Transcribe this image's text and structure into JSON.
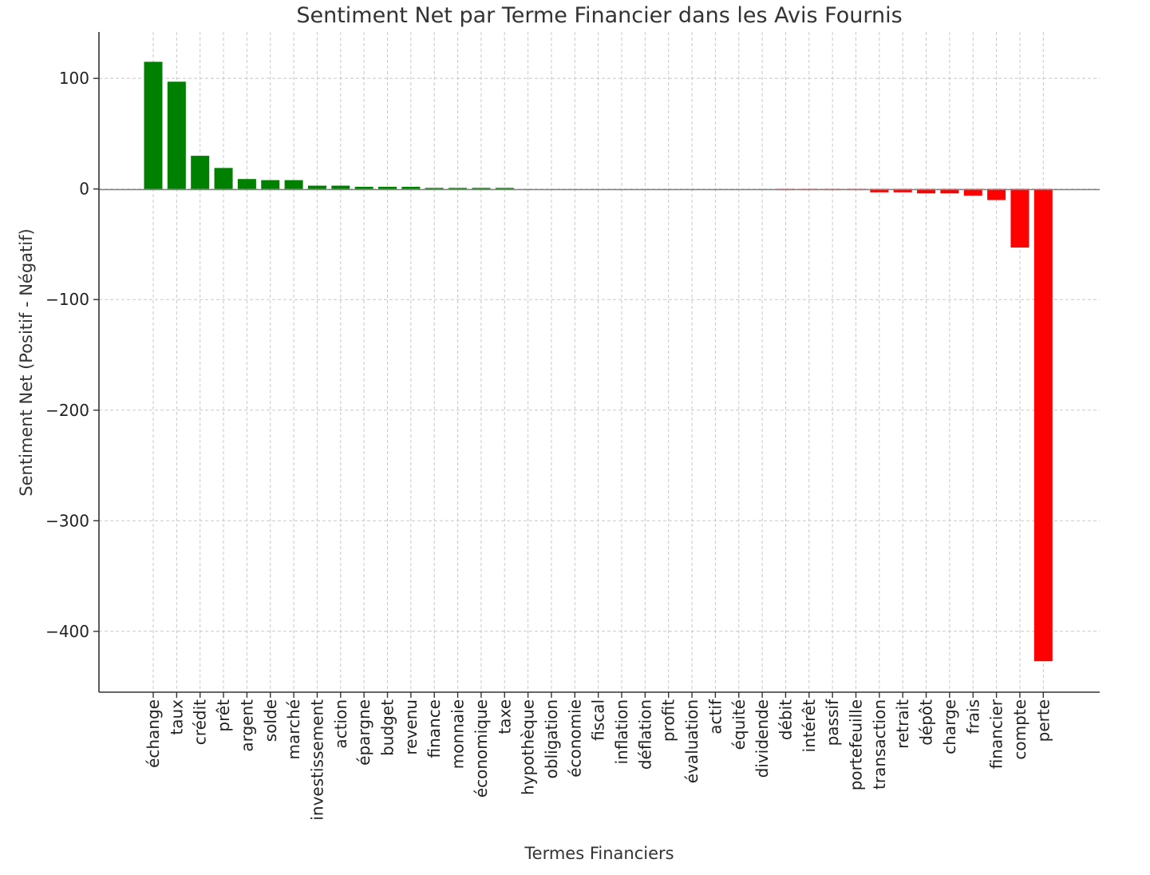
{
  "chart_data": {
    "type": "bar",
    "title": "Sentiment Net par Terme Financier dans les Avis Fournis",
    "xlabel": "Termes Financiers",
    "ylabel": "Sentiment Net (Positif - Négatif)",
    "ylim": [
      -455,
      142
    ],
    "yticks": [
      100,
      0,
      -100,
      -200,
      -300,
      -400
    ],
    "ytick_labels": [
      "100",
      "0",
      "−100",
      "−200",
      "−300",
      "−400"
    ],
    "grid": true,
    "colors": {
      "positive": "#008000",
      "negative": "#ff0000"
    },
    "categories": [
      "échange",
      "taux",
      "crédit",
      "prêt",
      "argent",
      "solde",
      "marché",
      "investissement",
      "action",
      "épargne",
      "budget",
      "revenu",
      "finance",
      "monnaie",
      "économique",
      "taxe",
      "hypothèque",
      "obligation",
      "économie",
      "fiscal",
      "inflation",
      "déflation",
      "profit",
      "évaluation",
      "actif",
      "équité",
      "dividende",
      "débit",
      "intérêt",
      "passif",
      "portefeuille",
      "transaction",
      "retrait",
      "dépôt",
      "charge",
      "frais",
      "financier",
      "compte",
      "perte"
    ],
    "values": [
      115,
      97,
      30,
      19,
      9,
      8,
      8,
      3,
      3,
      2,
      2,
      2,
      1,
      1,
      1,
      1,
      0,
      0,
      0,
      0,
      0,
      0,
      0,
      0,
      0,
      0,
      0,
      -1,
      -1,
      -1,
      -1,
      -3,
      -3,
      -4,
      -4,
      -6,
      -10,
      -53,
      -427
    ]
  }
}
